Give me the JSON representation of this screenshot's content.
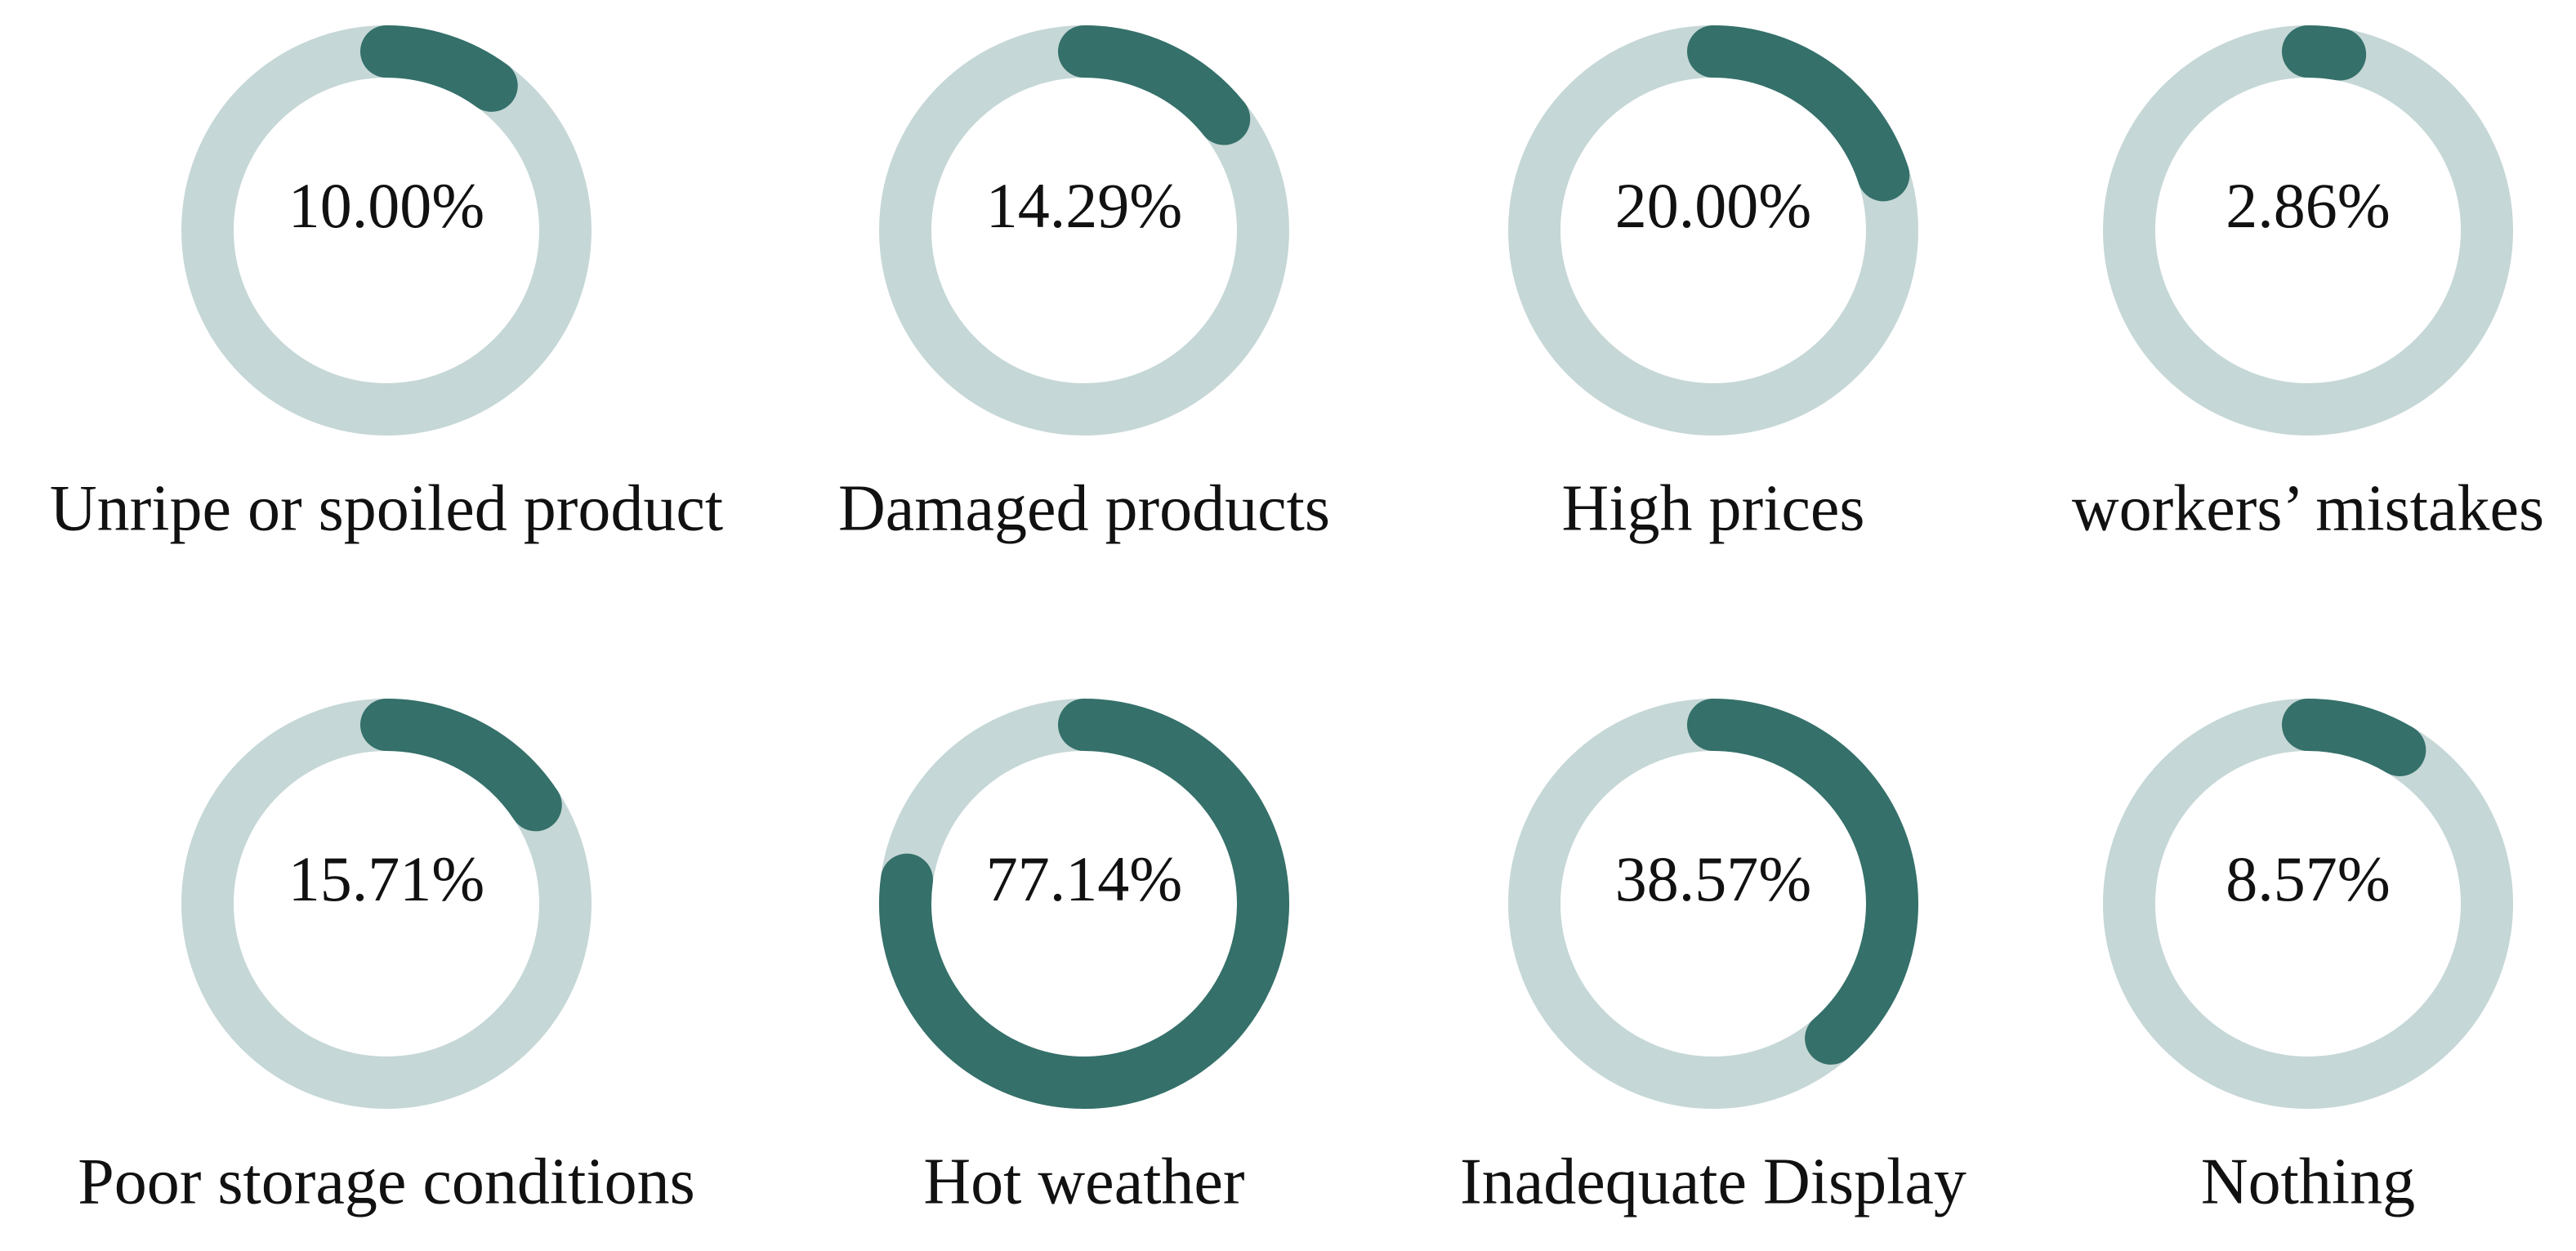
{
  "chart_data": {
    "type": "gauge",
    "categories": [
      "Unripe or spoiled product",
      "Damaged products",
      "High prices",
      "workers’ mistakes",
      "Poor storage conditions",
      "Hot weather",
      "Inadequate Display",
      "Nothing"
    ],
    "values": [
      10,
      14.29,
      20,
      2.86,
      15.71,
      77.14,
      38.57,
      8.57
    ],
    "value_labels": [
      "10.00%",
      "14.29%",
      "20.00%",
      "2.86%",
      "15.71%",
      "77.14%",
      "38.57%",
      "8.57%"
    ],
    "color": "#35706a",
    "track_color": "#c5d7d6",
    "ylim": [
      0,
      100
    ]
  }
}
